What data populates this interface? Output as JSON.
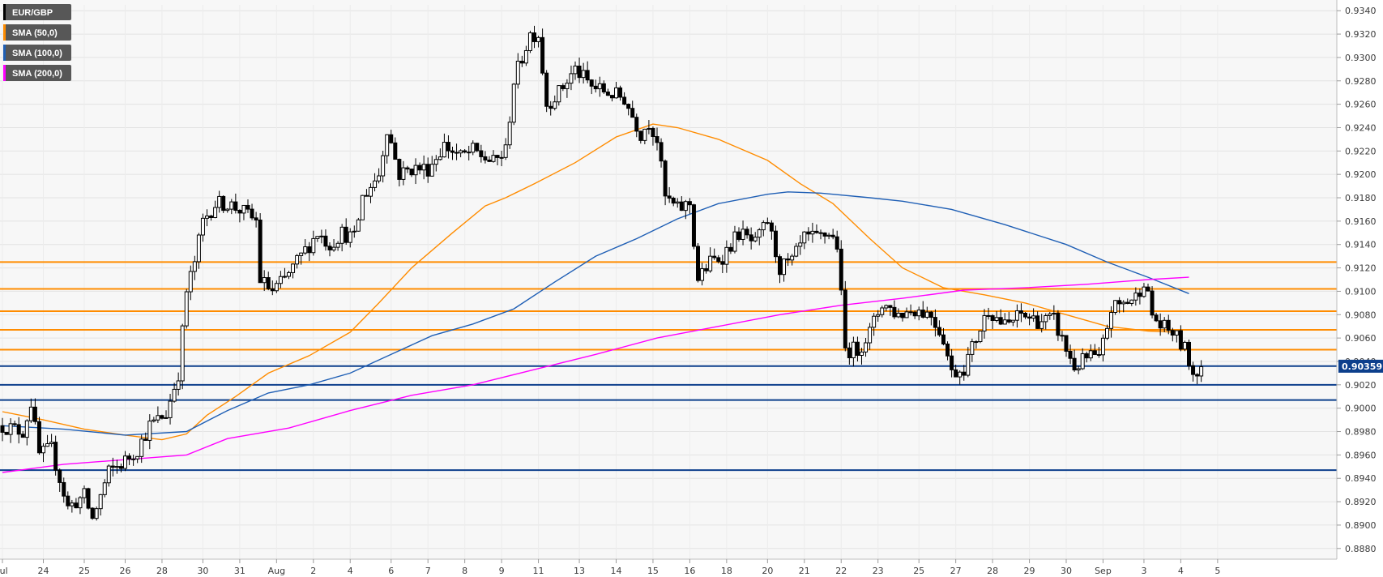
{
  "chart_data": {
    "type": "candlestick",
    "symbol": "EUR/GBP",
    "legend": [
      {
        "label": "EUR/GBP",
        "color": "#000000"
      },
      {
        "label": "SMA (50,0)",
        "color": "#ff8c00"
      },
      {
        "label": "SMA (100,0)",
        "color": "#1f5fb5"
      },
      {
        "label": "SMA (200,0)",
        "color": "#ff00ff"
      }
    ],
    "ylim": [
      0.8875,
      0.9345
    ],
    "y_ticks": [
      "0.9340",
      "0.9320",
      "0.9300",
      "0.9280",
      "0.9260",
      "0.9240",
      "0.9220",
      "0.9200",
      "0.9180",
      "0.9160",
      "0.9140",
      "0.9120",
      "0.9100",
      "0.9080",
      "0.9060",
      "0.9040",
      "0.9020",
      "0.9000",
      "0.8980",
      "0.8960",
      "0.8940",
      "0.8920",
      "0.8900",
      "0.8880"
    ],
    "x_ticks": [
      {
        "label": "Jul",
        "idx": 0
      },
      {
        "label": "24",
        "idx": 10
      },
      {
        "label": "25",
        "idx": 20
      },
      {
        "label": "26",
        "idx": 30
      },
      {
        "label": "28",
        "idx": 39
      },
      {
        "label": "30",
        "idx": 49
      },
      {
        "label": "31",
        "idx": 58
      },
      {
        "label": "Aug",
        "idx": 67
      },
      {
        "label": "2",
        "idx": 76
      },
      {
        "label": "4",
        "idx": 85
      },
      {
        "label": "6",
        "idx": 95
      },
      {
        "label": "7",
        "idx": 104
      },
      {
        "label": "8",
        "idx": 113
      },
      {
        "label": "9",
        "idx": 122
      },
      {
        "label": "11",
        "idx": 131
      },
      {
        "label": "13",
        "idx": 141
      },
      {
        "label": "14",
        "idx": 150
      },
      {
        "label": "15",
        "idx": 159
      },
      {
        "label": "16",
        "idx": 168
      },
      {
        "label": "18",
        "idx": 177
      },
      {
        "label": "20",
        "idx": 187
      },
      {
        "label": "21",
        "idx": 196
      },
      {
        "label": "22",
        "idx": 205
      },
      {
        "label": "23",
        "idx": 214
      },
      {
        "label": "25",
        "idx": 224
      },
      {
        "label": "27",
        "idx": 233
      },
      {
        "label": "28",
        "idx": 242
      },
      {
        "label": "29",
        "idx": 251
      },
      {
        "label": "30",
        "idx": 260
      },
      {
        "label": "Sep",
        "idx": 269
      },
      {
        "label": "3",
        "idx": 279
      },
      {
        "label": "4",
        "idx": 288
      },
      {
        "label": "5",
        "idx": 297
      }
    ],
    "last_price": "0.90359",
    "horizontal_levels": [
      {
        "value": 0.9125,
        "color": "#ff8c00"
      },
      {
        "value": 0.9102,
        "color": "#ff8c00"
      },
      {
        "value": 0.9083,
        "color": "#ff8c00"
      },
      {
        "value": 0.9067,
        "color": "#ff8c00"
      },
      {
        "value": 0.905,
        "color": "#ff8c00"
      },
      {
        "value": 0.9036,
        "color": "#0d3f8c"
      },
      {
        "value": 0.902,
        "color": "#0d3f8c"
      },
      {
        "value": 0.9007,
        "color": "#0d3f8c"
      },
      {
        "value": 0.8947,
        "color": "#0d3f8c"
      }
    ],
    "anchors": [
      [
        0,
        0.8985
      ],
      [
        5,
        0.898
      ],
      [
        7,
        0.9005
      ],
      [
        9,
        0.896
      ],
      [
        12,
        0.8965
      ],
      [
        16,
        0.8915
      ],
      [
        20,
        0.8925
      ],
      [
        22,
        0.8905
      ],
      [
        26,
        0.8945
      ],
      [
        30,
        0.8955
      ],
      [
        33,
        0.8965
      ],
      [
        36,
        0.8985
      ],
      [
        40,
        0.8995
      ],
      [
        43,
        0.903
      ],
      [
        45,
        0.91
      ],
      [
        47,
        0.9125
      ],
      [
        49,
        0.916
      ],
      [
        52,
        0.9175
      ],
      [
        55,
        0.9175
      ],
      [
        58,
        0.917
      ],
      [
        62,
        0.916
      ],
      [
        63,
        0.911
      ],
      [
        66,
        0.91
      ],
      [
        69,
        0.911
      ],
      [
        73,
        0.913
      ],
      [
        77,
        0.915
      ],
      [
        80,
        0.914
      ],
      [
        83,
        0.915
      ],
      [
        86,
        0.9145
      ],
      [
        88,
        0.918
      ],
      [
        92,
        0.92
      ],
      [
        94,
        0.924
      ],
      [
        97,
        0.92
      ],
      [
        100,
        0.9205
      ],
      [
        104,
        0.9205
      ],
      [
        108,
        0.9225
      ],
      [
        112,
        0.9215
      ],
      [
        115,
        0.922
      ],
      [
        120,
        0.921
      ],
      [
        123,
        0.922
      ],
      [
        125,
        0.928
      ],
      [
        127,
        0.93
      ],
      [
        129,
        0.932
      ],
      [
        131,
        0.932
      ],
      [
        133,
        0.926
      ],
      [
        136,
        0.927
      ],
      [
        140,
        0.929
      ],
      [
        144,
        0.9275
      ],
      [
        148,
        0.927
      ],
      [
        152,
        0.9265
      ],
      [
        156,
        0.9235
      ],
      [
        158,
        0.9245
      ],
      [
        160,
        0.923
      ],
      [
        162,
        0.918
      ],
      [
        165,
        0.917
      ],
      [
        168,
        0.9175
      ],
      [
        170,
        0.911
      ],
      [
        173,
        0.9125
      ],
      [
        176,
        0.913
      ],
      [
        180,
        0.915
      ],
      [
        184,
        0.914
      ],
      [
        187,
        0.916
      ],
      [
        190,
        0.912
      ],
      [
        193,
        0.9125
      ],
      [
        196,
        0.9145
      ],
      [
        199,
        0.9145
      ],
      [
        202,
        0.915
      ],
      [
        204,
        0.914
      ],
      [
        206,
        0.905
      ],
      [
        209,
        0.905
      ],
      [
        212,
        0.9065
      ],
      [
        215,
        0.909
      ],
      [
        219,
        0.908
      ],
      [
        223,
        0.9085
      ],
      [
        227,
        0.908
      ],
      [
        230,
        0.906
      ],
      [
        232,
        0.903
      ],
      [
        235,
        0.9035
      ],
      [
        238,
        0.906
      ],
      [
        241,
        0.9085
      ],
      [
        245,
        0.907
      ],
      [
        249,
        0.908
      ],
      [
        253,
        0.9075
      ],
      [
        257,
        0.9075
      ],
      [
        260,
        0.905
      ],
      [
        262,
        0.9035
      ],
      [
        266,
        0.9045
      ],
      [
        268,
        0.904
      ],
      [
        271,
        0.9085
      ],
      [
        274,
        0.909
      ],
      [
        277,
        0.9095
      ],
      [
        279,
        0.911
      ],
      [
        281,
        0.908
      ],
      [
        283,
        0.907
      ],
      [
        286,
        0.9065
      ],
      [
        289,
        0.905
      ],
      [
        291,
        0.903
      ],
      [
        293,
        0.9036
      ]
    ],
    "sma": [
      {
        "name": "SMA (50,0)",
        "color": "#ff8c00",
        "points": [
          [
            0,
            0.8997
          ],
          [
            10,
            0.899
          ],
          [
            20,
            0.8982
          ],
          [
            30,
            0.8977
          ],
          [
            39,
            0.8973
          ],
          [
            45,
            0.8978
          ],
          [
            50,
            0.8994
          ],
          [
            57,
            0.901
          ],
          [
            65,
            0.903
          ],
          [
            75,
            0.9045
          ],
          [
            85,
            0.9065
          ],
          [
            92,
            0.909
          ],
          [
            100,
            0.912
          ],
          [
            110,
            0.915
          ],
          [
            118,
            0.9173
          ],
          [
            123,
            0.918
          ],
          [
            130,
            0.9192
          ],
          [
            140,
            0.921
          ],
          [
            150,
            0.9232
          ],
          [
            159,
            0.9243
          ],
          [
            165,
            0.924
          ],
          [
            175,
            0.923
          ],
          [
            187,
            0.9212
          ],
          [
            195,
            0.9192
          ],
          [
            203,
            0.9175
          ],
          [
            212,
            0.9145
          ],
          [
            220,
            0.912
          ],
          [
            230,
            0.9103
          ],
          [
            240,
            0.9097
          ],
          [
            250,
            0.909
          ],
          [
            260,
            0.908
          ],
          [
            270,
            0.907
          ],
          [
            280,
            0.9066
          ],
          [
            287,
            0.9065
          ]
        ]
      },
      {
        "name": "SMA (100,0)",
        "color": "#1f5fb5",
        "points": [
          [
            0,
            0.8985
          ],
          [
            15,
            0.8982
          ],
          [
            30,
            0.8977
          ],
          [
            45,
            0.898
          ],
          [
            55,
            0.8998
          ],
          [
            65,
            0.9013
          ],
          [
            75,
            0.902
          ],
          [
            85,
            0.903
          ],
          [
            95,
            0.9046
          ],
          [
            105,
            0.9062
          ],
          [
            115,
            0.9072
          ],
          [
            125,
            0.9085
          ],
          [
            135,
            0.9108
          ],
          [
            145,
            0.913
          ],
          [
            155,
            0.9145
          ],
          [
            165,
            0.9162
          ],
          [
            175,
            0.9175
          ],
          [
            187,
            0.9183
          ],
          [
            192,
            0.9185
          ],
          [
            200,
            0.9184
          ],
          [
            212,
            0.918
          ],
          [
            220,
            0.9177
          ],
          [
            232,
            0.917
          ],
          [
            245,
            0.9157
          ],
          [
            260,
            0.914
          ],
          [
            270,
            0.9125
          ],
          [
            280,
            0.9112
          ],
          [
            290,
            0.9098
          ]
        ]
      },
      {
        "name": "SMA (200,0)",
        "color": "#ff00ff",
        "points": [
          [
            0,
            0.8945
          ],
          [
            15,
            0.8952
          ],
          [
            30,
            0.8956
          ],
          [
            45,
            0.896
          ],
          [
            55,
            0.8974
          ],
          [
            70,
            0.8983
          ],
          [
            85,
            0.8998
          ],
          [
            100,
            0.9011
          ],
          [
            115,
            0.902
          ],
          [
            130,
            0.9033
          ],
          [
            145,
            0.9046
          ],
          [
            160,
            0.906
          ],
          [
            175,
            0.907
          ],
          [
            190,
            0.908
          ],
          [
            205,
            0.9088
          ],
          [
            220,
            0.9094
          ],
          [
            235,
            0.9101
          ],
          [
            250,
            0.9103
          ],
          [
            265,
            0.9106
          ],
          [
            280,
            0.911
          ],
          [
            290,
            0.9112
          ]
        ]
      }
    ]
  }
}
